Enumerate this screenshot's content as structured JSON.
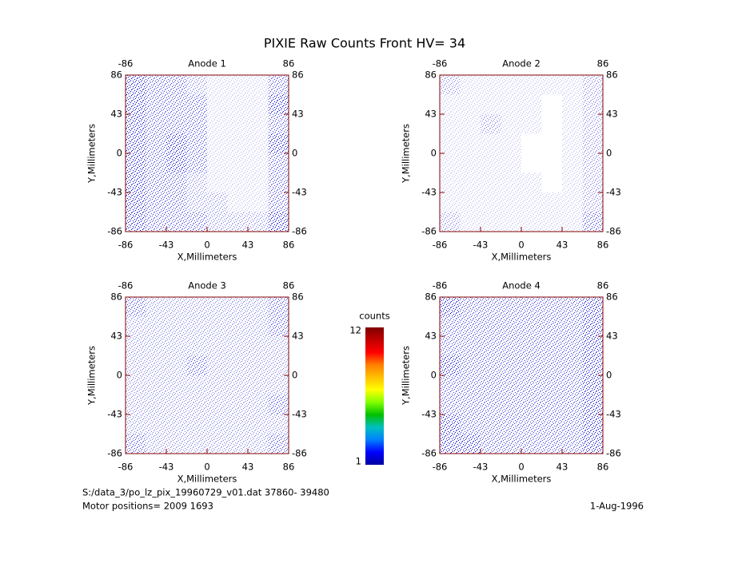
{
  "title": "PIXIE Raw Counts Front HV= 34",
  "colorbar": {
    "label": "counts",
    "lim": [
      1,
      12
    ],
    "ticks": [
      1,
      12
    ],
    "colors": [
      "#0000a0",
      "#0000ff",
      "#0080ff",
      "#00c0c0",
      "#00c000",
      "#80ff00",
      "#ffff00",
      "#ffc000",
      "#ff8000",
      "#ff0000",
      "#c00000",
      "#800000"
    ]
  },
  "footer": {
    "file": "S:/data_3/po_lz_pix_19960729_v01.dat   37860- 39480",
    "motor": "Motor positions= 2009 1693",
    "date": "1-Aug-1996"
  },
  "chart_data": [
    {
      "type": "heatmap",
      "title": "Anode 1",
      "x_label": "X,Millimeters",
      "y_label": "Y,Millimeters",
      "color": "#0000c8",
      "xlim": [
        -86,
        86
      ],
      "ylim": [
        -86,
        86
      ],
      "xticks": [
        -86,
        -43,
        0,
        43,
        86
      ],
      "x2ticks": [
        -86,
        86
      ],
      "yticks": [
        -86,
        -43,
        0,
        43,
        86
      ],
      "values": [
        [
          4,
          3,
          3,
          2,
          1,
          1,
          1,
          3
        ],
        [
          4,
          3,
          3,
          3,
          1,
          1,
          1,
          4
        ],
        [
          4,
          3,
          3,
          3,
          1,
          1,
          1,
          3
        ],
        [
          4,
          3,
          4,
          3,
          1,
          1,
          1,
          4
        ],
        [
          4,
          3,
          4,
          3,
          1,
          1,
          1,
          3
        ],
        [
          4,
          3,
          3,
          2,
          1,
          1,
          1,
          3
        ],
        [
          4,
          3,
          3,
          2,
          2,
          1,
          1,
          3
        ],
        [
          4,
          3,
          3,
          3,
          2,
          2,
          2,
          4
        ]
      ]
    },
    {
      "type": "heatmap",
      "title": "Anode 2",
      "x_label": "X,Millimeters",
      "y_label": "Y,Millimeters",
      "color": "#0000c8",
      "xlim": [
        -86,
        86
      ],
      "ylim": [
        -86,
        86
      ],
      "xticks": [
        -86,
        -43,
        0,
        43,
        86
      ],
      "x2ticks": [
        -86,
        86
      ],
      "yticks": [
        -86,
        -43,
        0,
        43,
        86
      ],
      "values": [
        [
          2,
          1,
          1,
          1,
          1,
          1,
          1,
          2
        ],
        [
          1,
          1,
          1,
          1,
          1,
          0,
          1,
          2
        ],
        [
          1,
          1,
          2,
          1,
          1,
          0,
          1,
          2
        ],
        [
          1,
          1,
          1,
          1,
          0,
          0,
          1,
          2
        ],
        [
          1,
          1,
          1,
          1,
          0,
          0,
          1,
          2
        ],
        [
          1,
          1,
          1,
          1,
          1,
          0,
          1,
          2
        ],
        [
          1,
          1,
          1,
          1,
          1,
          1,
          1,
          2
        ],
        [
          2,
          1,
          1,
          1,
          1,
          1,
          1,
          3
        ]
      ]
    },
    {
      "type": "heatmap",
      "title": "Anode 3",
      "x_label": "X,Millimeters",
      "y_label": "Y,Millimeters",
      "color": "#0000c8",
      "xlim": [
        -86,
        86
      ],
      "ylim": [
        -86,
        86
      ],
      "xticks": [
        -86,
        -43,
        0,
        43,
        86
      ],
      "x2ticks": [
        -86,
        86
      ],
      "yticks": [
        -86,
        -43,
        0,
        43,
        86
      ],
      "values": [
        [
          3,
          2,
          2,
          2,
          2,
          2,
          2,
          3
        ],
        [
          2,
          2,
          2,
          2,
          2,
          2,
          2,
          3
        ],
        [
          2,
          2,
          2,
          2,
          2,
          2,
          2,
          2
        ],
        [
          2,
          2,
          2,
          3,
          2,
          2,
          2,
          2
        ],
        [
          2,
          2,
          2,
          2,
          2,
          2,
          2,
          2
        ],
        [
          2,
          2,
          2,
          2,
          2,
          2,
          2,
          3
        ],
        [
          2,
          2,
          2,
          2,
          2,
          2,
          2,
          2
        ],
        [
          3,
          2,
          2,
          2,
          2,
          2,
          2,
          3
        ]
      ]
    },
    {
      "type": "heatmap",
      "title": "Anode 4",
      "x_label": "X,Millimeters",
      "y_label": "Y,Millimeters",
      "color": "#0000c8",
      "xlim": [
        -86,
        86
      ],
      "ylim": [
        -86,
        86
      ],
      "xticks": [
        -86,
        -43,
        0,
        43,
        86
      ],
      "x2ticks": [
        -86,
        86
      ],
      "yticks": [
        -86,
        -43,
        0,
        43,
        86
      ],
      "values": [
        [
          4,
          3,
          3,
          3,
          3,
          3,
          3,
          4
        ],
        [
          3,
          3,
          3,
          3,
          3,
          3,
          3,
          4
        ],
        [
          3,
          3,
          3,
          3,
          3,
          3,
          3,
          4
        ],
        [
          4,
          3,
          3,
          3,
          3,
          3,
          3,
          4
        ],
        [
          3,
          3,
          3,
          3,
          3,
          3,
          3,
          4
        ],
        [
          3,
          3,
          3,
          3,
          3,
          3,
          3,
          4
        ],
        [
          4,
          3,
          3,
          3,
          3,
          3,
          3,
          4
        ],
        [
          4,
          4,
          3,
          3,
          3,
          3,
          3,
          4
        ]
      ]
    }
  ]
}
